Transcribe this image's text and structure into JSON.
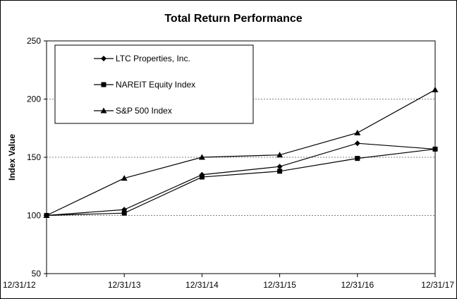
{
  "chart_data": {
    "type": "line",
    "title": "Total Return Performance",
    "xlabel": "",
    "ylabel": "Index Value",
    "categories": [
      "12/31/12",
      "12/31/13",
      "12/31/14",
      "12/31/15",
      "12/31/16",
      "12/31/17"
    ],
    "ylim": [
      50,
      250
    ],
    "yticks": [
      50,
      100,
      150,
      200,
      250
    ],
    "grid": true,
    "legend_position": "top-left",
    "series": [
      {
        "name": "LTC Properties, Inc.",
        "marker": "diamond",
        "values": [
          100,
          105,
          135,
          142,
          162,
          157
        ]
      },
      {
        "name": "NAREIT Equity Index",
        "marker": "square",
        "values": [
          100,
          102,
          133,
          138,
          149,
          157
        ]
      },
      {
        "name": "S&P 500 Index",
        "marker": "triangle",
        "values": [
          100,
          132,
          150,
          152,
          171,
          208
        ]
      }
    ]
  }
}
